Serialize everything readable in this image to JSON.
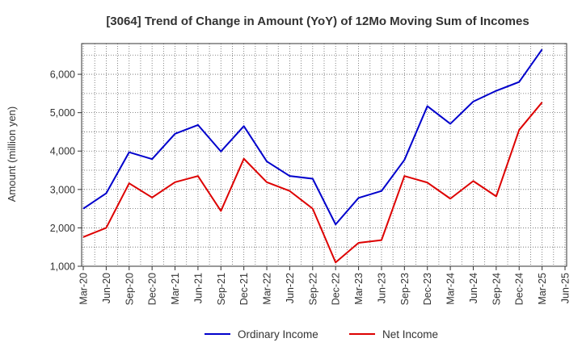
{
  "chart_data": {
    "type": "line",
    "title": "[3064]  Trend of Change in Amount (YoY) of 12Mo Moving Sum of Incomes",
    "xlabel": "",
    "ylabel": "Amount (million yen)",
    "ylim": [
      1000,
      6800
    ],
    "yticks": [
      1000,
      2000,
      3000,
      4000,
      5000,
      6000
    ],
    "ytick_labels": [
      "1,000",
      "2,000",
      "3,000",
      "4,000",
      "5,000",
      "6,000"
    ],
    "grid": true,
    "legend_position": "bottom",
    "categories": [
      "Mar-20",
      "Jun-20",
      "Sep-20",
      "Dec-20",
      "Mar-21",
      "Jun-21",
      "Sep-21",
      "Dec-21",
      "Mar-22",
      "Jun-22",
      "Sep-22",
      "Dec-22",
      "Mar-23",
      "Jun-23",
      "Sep-23",
      "Dec-23",
      "Mar-24",
      "Jun-24",
      "Sep-24",
      "Dec-24",
      "Mar-25",
      "Jun-25"
    ],
    "series": [
      {
        "name": "Ordinary Income",
        "color": "#0000cc",
        "values": [
          2500,
          2900,
          3970,
          3790,
          4450,
          4680,
          3990,
          4650,
          3730,
          3350,
          3280,
          2090,
          2780,
          2960,
          3770,
          5170,
          4710,
          5290,
          5570,
          5800,
          6650,
          null
        ]
      },
      {
        "name": "Net Income",
        "color": "#dd0000",
        "values": [
          1760,
          2000,
          3160,
          2790,
          3190,
          3350,
          2440,
          3800,
          3190,
          2960,
          2500,
          1100,
          1610,
          1680,
          3350,
          3180,
          2760,
          3220,
          2820,
          4550,
          5270,
          null
        ]
      }
    ]
  }
}
